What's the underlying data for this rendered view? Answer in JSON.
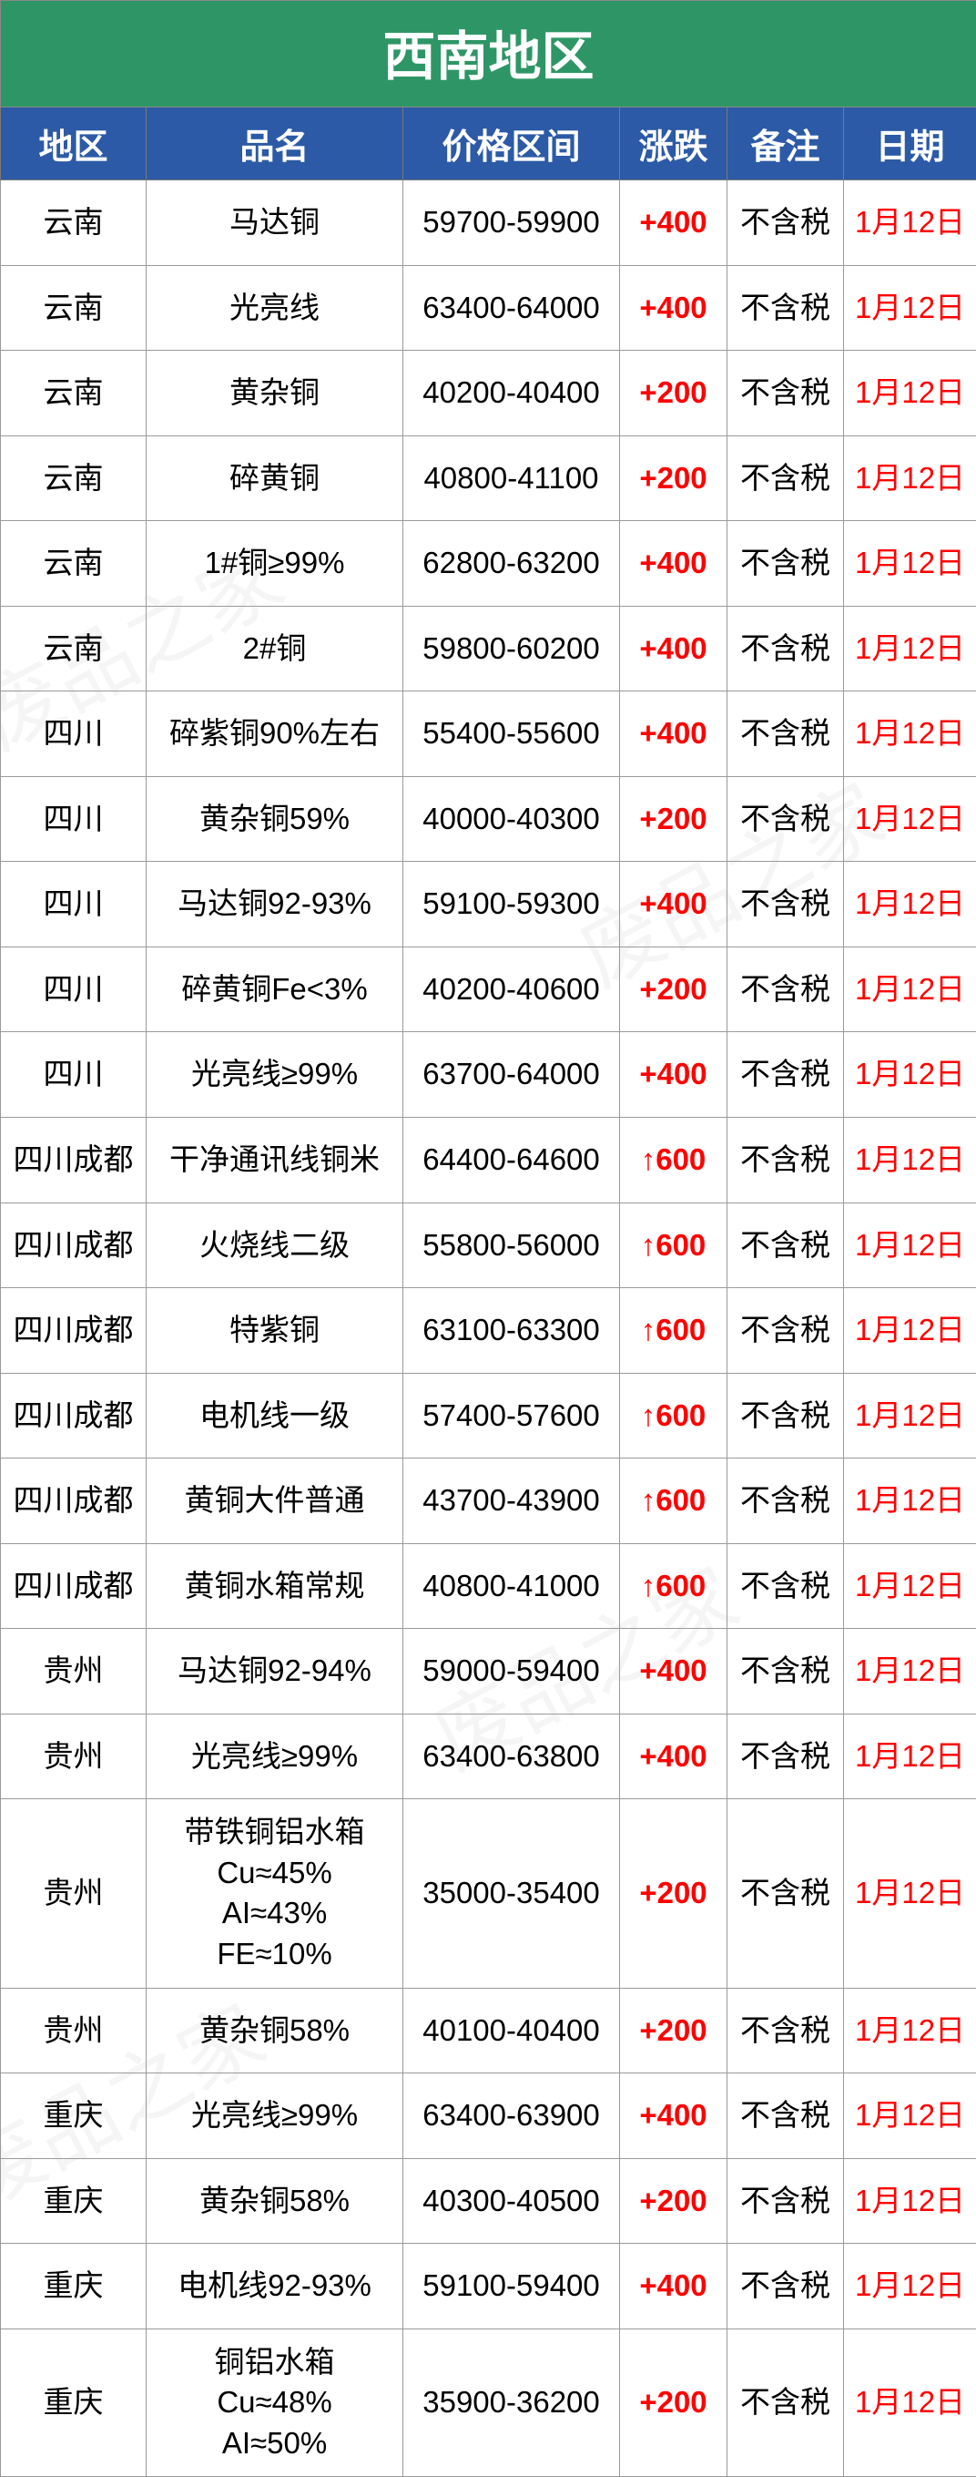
{
  "title": "西南地区",
  "watermark_text": "废品之家",
  "columns": [
    "地区",
    "品名",
    "价格区间",
    "涨跌",
    "备注",
    "日期"
  ],
  "colors": {
    "title_bg": "#2e9666",
    "header_bg": "#2c5aa6",
    "header_fg": "#ffffff",
    "border": "#9a9a9a",
    "text": "#000000",
    "red": "#ff0000"
  },
  "rows": [
    {
      "region": "云南",
      "product": "马达铜",
      "price": "59700-59900",
      "change": "+400",
      "remark": "不含税",
      "date": "1月12日"
    },
    {
      "region": "云南",
      "product": "光亮线",
      "price": "63400-64000",
      "change": "+400",
      "remark": "不含税",
      "date": "1月12日"
    },
    {
      "region": "云南",
      "product": "黄杂铜",
      "price": "40200-40400",
      "change": "+200",
      "remark": "不含税",
      "date": "1月12日"
    },
    {
      "region": "云南",
      "product": "碎黄铜",
      "price": "40800-41100",
      "change": "+200",
      "remark": "不含税",
      "date": "1月12日"
    },
    {
      "region": "云南",
      "product": "1#铜≥99%",
      "price": "62800-63200",
      "change": "+400",
      "remark": "不含税",
      "date": "1月12日"
    },
    {
      "region": "云南",
      "product": "2#铜",
      "price": "59800-60200",
      "change": "+400",
      "remark": "不含税",
      "date": "1月12日"
    },
    {
      "region": "四川",
      "product": "碎紫铜90%左右",
      "price": "55400-55600",
      "change": "+400",
      "remark": "不含税",
      "date": "1月12日"
    },
    {
      "region": "四川",
      "product": "黄杂铜59%",
      "price": "40000-40300",
      "change": "+200",
      "remark": "不含税",
      "date": "1月12日"
    },
    {
      "region": "四川",
      "product": "马达铜92-93%",
      "price": "59100-59300",
      "change": "+400",
      "remark": "不含税",
      "date": "1月12日"
    },
    {
      "region": "四川",
      "product": "碎黄铜Fe<3%",
      "price": "40200-40600",
      "change": "+200",
      "remark": "不含税",
      "date": "1月12日"
    },
    {
      "region": "四川",
      "product": "光亮线≥99%",
      "price": "63700-64000",
      "change": "+400",
      "remark": "不含税",
      "date": "1月12日"
    },
    {
      "region": "四川成都",
      "product": "干净通讯线铜米",
      "price": "64400-64600",
      "change": "↑600",
      "remark": "不含税",
      "date": "1月12日"
    },
    {
      "region": "四川成都",
      "product": "火烧线二级",
      "price": "55800-56000",
      "change": "↑600",
      "remark": "不含税",
      "date": "1月12日"
    },
    {
      "region": "四川成都",
      "product": "特紫铜",
      "price": "63100-63300",
      "change": "↑600",
      "remark": "不含税",
      "date": "1月12日"
    },
    {
      "region": "四川成都",
      "product": "电机线一级",
      "price": "57400-57600",
      "change": "↑600",
      "remark": "不含税",
      "date": "1月12日"
    },
    {
      "region": "四川成都",
      "product": "黄铜大件普通",
      "price": "43700-43900",
      "change": "↑600",
      "remark": "不含税",
      "date": "1月12日"
    },
    {
      "region": "四川成都",
      "product": "黄铜水箱常规",
      "price": "40800-41000",
      "change": "↑600",
      "remark": "不含税",
      "date": "1月12日"
    },
    {
      "region": "贵州",
      "product": "马达铜92-94%",
      "price": "59000-59400",
      "change": "+400",
      "remark": "不含税",
      "date": "1月12日"
    },
    {
      "region": "贵州",
      "product": "光亮线≥99%",
      "price": "63400-63800",
      "change": "+400",
      "remark": "不含税",
      "date": "1月12日"
    },
    {
      "region": "贵州",
      "product": "带铁铜铝水箱\nCu≈45%\nAI≈43%\nFE≈10%",
      "price": "35000-35400",
      "change": "+200",
      "remark": "不含税",
      "date": "1月12日",
      "multiline": true
    },
    {
      "region": "贵州",
      "product": "黄杂铜58%",
      "price": "40100-40400",
      "change": "+200",
      "remark": "不含税",
      "date": "1月12日"
    },
    {
      "region": "重庆",
      "product": "光亮线≥99%",
      "price": "63400-63900",
      "change": "+400",
      "remark": "不含税",
      "date": "1月12日"
    },
    {
      "region": "重庆",
      "product": "黄杂铜58%",
      "price": "40300-40500",
      "change": "+200",
      "remark": "不含税",
      "date": "1月12日"
    },
    {
      "region": "重庆",
      "product": "电机线92-93%",
      "price": "59100-59400",
      "change": "+400",
      "remark": "不含税",
      "date": "1月12日"
    },
    {
      "region": "重庆",
      "product": "铜铝水箱\nCu≈48%\nAI≈50%",
      "price": "35900-36200",
      "change": "+200",
      "remark": "不含税",
      "date": "1月12日",
      "multiline": true
    }
  ]
}
